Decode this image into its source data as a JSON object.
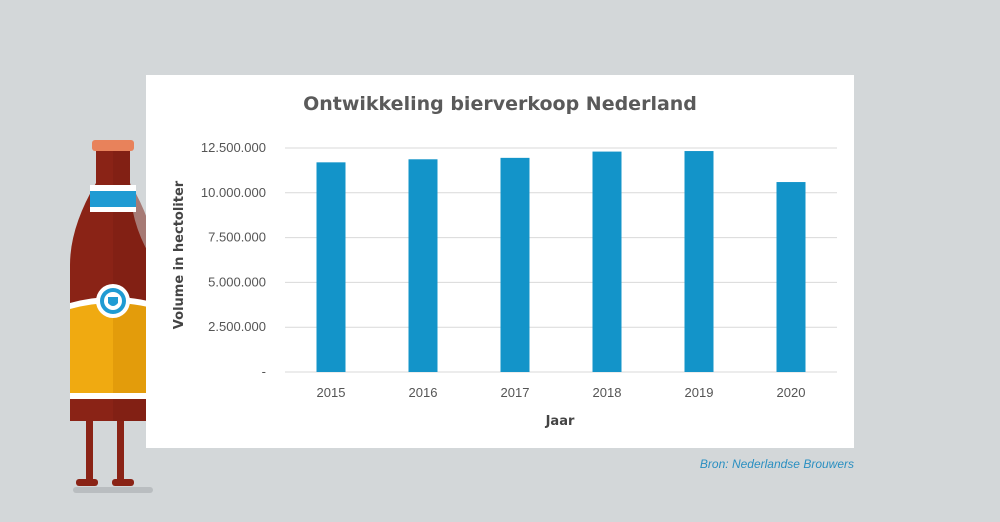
{
  "colors": {
    "background": "#d3d7d9",
    "panel": "#ffffff",
    "bar": "#1394c9",
    "gridline": "#d9d9d9",
    "source_text": "#2a8fc1",
    "bottle_glass": "#8a2316",
    "bottle_label": "#f0aa11",
    "bottle_neck_band": "#1f9bd3"
  },
  "illustration": {
    "icon": "beer-bottle-icon",
    "label_icon": "crest-icon"
  },
  "source": "Bron: Nederlandse Brouwers",
  "chart_data": {
    "type": "bar",
    "title": "Ontwikkeling bierverkoop Nederland",
    "xlabel": "Jaar",
    "ylabel": "Volume in hectoliter",
    "categories": [
      "2015",
      "2016",
      "2017",
      "2018",
      "2019",
      "2020"
    ],
    "values": [
      11700000,
      11870000,
      11950000,
      12300000,
      12330000,
      10600000
    ],
    "ylim": [
      0,
      12500000
    ],
    "yticks": [
      {
        "value": 0,
        "label": "-"
      },
      {
        "value": 2500000,
        "label": "2.500.000"
      },
      {
        "value": 5000000,
        "label": "5.000.000"
      },
      {
        "value": 7500000,
        "label": "7.500.000"
      },
      {
        "value": 10000000,
        "label": "10.000.000"
      },
      {
        "value": 12500000,
        "label": "12.500.000"
      }
    ],
    "grid": true,
    "legend": "none"
  }
}
